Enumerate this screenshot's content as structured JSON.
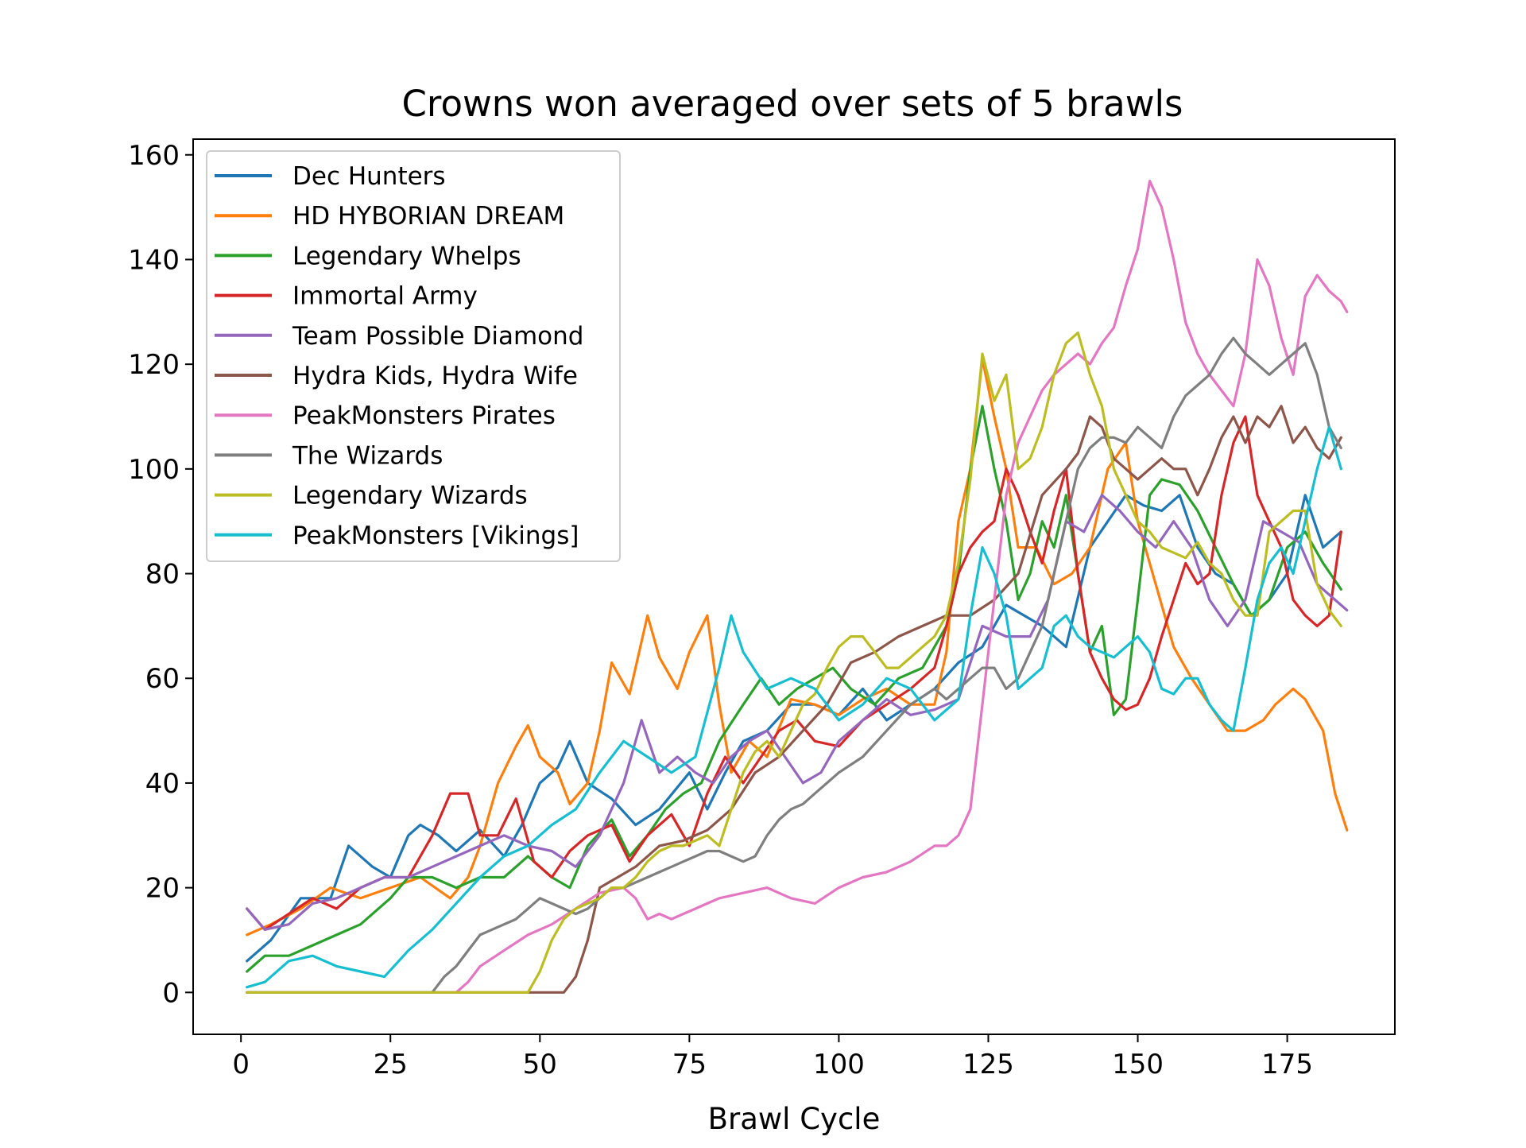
{
  "chart_data": {
    "type": "line",
    "title": "Crowns won averaged over sets of 5 brawls",
    "xlabel": "Brawl Cycle",
    "ylabel": "",
    "xlim": [
      -8,
      193
    ],
    "ylim": [
      -8,
      163
    ],
    "xticks": [
      0,
      25,
      50,
      75,
      100,
      125,
      150,
      175
    ],
    "yticks": [
      0,
      20,
      40,
      60,
      80,
      100,
      120,
      140,
      160
    ],
    "grid": false,
    "legend_position": "upper-left",
    "series": [
      {
        "name": "Dec Hunters",
        "color": "#1f77b4",
        "x": [
          1,
          5,
          10,
          15,
          18,
          22,
          25,
          28,
          30,
          33,
          36,
          40,
          44,
          47,
          50,
          53,
          55,
          58,
          62,
          66,
          70,
          75,
          78,
          81,
          84,
          88,
          92,
          96,
          100,
          104,
          108,
          112,
          116,
          120,
          124,
          128,
          131,
          134,
          138,
          142,
          145,
          148,
          151,
          154,
          157,
          160,
          163,
          166,
          169,
          172,
          175,
          178,
          181,
          184
        ],
        "y": [
          6,
          10,
          18,
          18,
          28,
          24,
          22,
          30,
          32,
          30,
          27,
          31,
          26,
          32,
          40,
          43,
          48,
          40,
          37,
          32,
          35,
          42,
          35,
          42,
          48,
          50,
          55,
          55,
          53,
          58,
          52,
          55,
          58,
          63,
          66,
          74,
          72,
          70,
          66,
          85,
          90,
          95,
          93,
          92,
          95,
          85,
          80,
          78,
          72,
          75,
          80,
          95,
          85,
          88
        ]
      },
      {
        "name": "HD HYBORIAN DREAM",
        "color": "#ff7f0e",
        "x": [
          1,
          5,
          10,
          15,
          20,
          25,
          30,
          35,
          38,
          40,
          43,
          46,
          48,
          50,
          53,
          55,
          58,
          60,
          62,
          65,
          68,
          70,
          73,
          75,
          78,
          80,
          82,
          85,
          88,
          92,
          96,
          100,
          104,
          108,
          112,
          116,
          118,
          120,
          122,
          124,
          126,
          128,
          130,
          133,
          136,
          139,
          142,
          145,
          148,
          150,
          153,
          156,
          159,
          162,
          165,
          168,
          171,
          173,
          176,
          178,
          181,
          183,
          185
        ],
        "y": [
          11,
          13,
          16,
          20,
          18,
          20,
          22,
          18,
          22,
          28,
          40,
          47,
          51,
          45,
          42,
          36,
          40,
          50,
          63,
          57,
          72,
          64,
          58,
          65,
          72,
          55,
          42,
          48,
          45,
          56,
          55,
          53,
          56,
          58,
          55,
          55,
          65,
          90,
          100,
          121,
          110,
          100,
          85,
          85,
          78,
          80,
          85,
          100,
          105,
          90,
          78,
          66,
          60,
          55,
          50,
          50,
          52,
          55,
          58,
          56,
          50,
          38,
          31
        ]
      },
      {
        "name": "Legendary Whelps",
        "color": "#2ca02c",
        "x": [
          1,
          4,
          8,
          12,
          16,
          20,
          25,
          28,
          32,
          36,
          40,
          44,
          48,
          52,
          55,
          58,
          62,
          65,
          68,
          71,
          74,
          77,
          80,
          84,
          87,
          90,
          93,
          96,
          99,
          102,
          106,
          110,
          114,
          118,
          120,
          122,
          124,
          126,
          128,
          130,
          132,
          134,
          136,
          138,
          140,
          142,
          144,
          146,
          148,
          150,
          152,
          154,
          157,
          160,
          163,
          166,
          169,
          172,
          175,
          178,
          181,
          184
        ],
        "y": [
          4,
          7,
          7,
          9,
          11,
          13,
          18,
          22,
          22,
          20,
          22,
          22,
          26,
          22,
          20,
          28,
          33,
          26,
          30,
          35,
          38,
          40,
          48,
          55,
          60,
          55,
          58,
          60,
          62,
          58,
          55,
          60,
          62,
          70,
          80,
          100,
          112,
          100,
          90,
          75,
          80,
          90,
          85,
          95,
          80,
          65,
          70,
          53,
          56,
          75,
          95,
          98,
          97,
          92,
          85,
          78,
          72,
          75,
          85,
          88,
          82,
          77
        ]
      },
      {
        "name": "Immortal Army",
        "color": "#d62728",
        "x": [
          1,
          4,
          8,
          12,
          16,
          20,
          24,
          28,
          32,
          35,
          38,
          40,
          43,
          46,
          49,
          52,
          55,
          58,
          62,
          65,
          68,
          72,
          75,
          78,
          81,
          84,
          87,
          90,
          93,
          96,
          100,
          104,
          108,
          112,
          116,
          118,
          120,
          122,
          124,
          126,
          128,
          130,
          132,
          134,
          136,
          138,
          140,
          142,
          144,
          146,
          148,
          150,
          152,
          154,
          156,
          158,
          160,
          162,
          164,
          166,
          168,
          170,
          172,
          174,
          176,
          178,
          180,
          182,
          184
        ],
        "y": [
          16,
          12,
          15,
          18,
          16,
          20,
          22,
          22,
          30,
          38,
          38,
          30,
          30,
          37,
          25,
          22,
          27,
          30,
          32,
          25,
          30,
          34,
          28,
          38,
          45,
          40,
          45,
          50,
          52,
          48,
          47,
          52,
          55,
          58,
          62,
          70,
          80,
          85,
          88,
          90,
          100,
          95,
          88,
          82,
          92,
          100,
          80,
          65,
          60,
          56,
          54,
          55,
          60,
          68,
          75,
          82,
          78,
          80,
          95,
          105,
          110,
          95,
          90,
          85,
          75,
          72,
          70,
          72,
          88
        ]
      },
      {
        "name": "Team Possible Diamond",
        "color": "#9467bd",
        "x": [
          1,
          4,
          8,
          12,
          16,
          20,
          24,
          28,
          32,
          36,
          40,
          44,
          48,
          52,
          56,
          60,
          64,
          67,
          70,
          73,
          76,
          79,
          82,
          85,
          88,
          91,
          94,
          97,
          100,
          104,
          108,
          112,
          116,
          120,
          124,
          128,
          132,
          135,
          138,
          141,
          144,
          147,
          150,
          153,
          156,
          159,
          162,
          165,
          168,
          171,
          174,
          177,
          180,
          183,
          185
        ],
        "y": [
          16,
          12,
          13,
          17,
          18,
          20,
          22,
          22,
          24,
          26,
          28,
          30,
          28,
          27,
          24,
          30,
          40,
          52,
          42,
          45,
          42,
          40,
          45,
          48,
          50,
          45,
          40,
          42,
          48,
          52,
          56,
          53,
          54,
          56,
          70,
          68,
          68,
          75,
          90,
          88,
          95,
          92,
          88,
          85,
          90,
          85,
          75,
          70,
          75,
          90,
          88,
          86,
          78,
          75,
          73
        ]
      },
      {
        "name": "Hydra Kids, Hydra Wife",
        "color": "#8c564b",
        "x": [
          1,
          10,
          20,
          30,
          40,
          50,
          54,
          56,
          58,
          60,
          63,
          66,
          70,
          74,
          78,
          82,
          86,
          90,
          94,
          98,
          102,
          106,
          110,
          114,
          118,
          122,
          126,
          130,
          134,
          138,
          140,
          142,
          144,
          146,
          148,
          150,
          152,
          154,
          156,
          158,
          160,
          162,
          164,
          166,
          168,
          170,
          172,
          174,
          176,
          178,
          180,
          182,
          184
        ],
        "y": [
          0,
          0,
          0,
          0,
          0,
          0,
          0,
          3,
          10,
          20,
          22,
          24,
          28,
          29,
          31,
          35,
          42,
          45,
          50,
          55,
          63,
          65,
          68,
          70,
          72,
          72,
          75,
          80,
          95,
          100,
          103,
          110,
          108,
          102,
          100,
          98,
          100,
          102,
          100,
          100,
          95,
          100,
          106,
          110,
          105,
          110,
          108,
          112,
          105,
          108,
          104,
          102,
          106
        ]
      },
      {
        "name": "PeakMonsters Pirates",
        "color": "#e377c2",
        "x": [
          1,
          20,
          36,
          38,
          40,
          44,
          48,
          52,
          56,
          60,
          64,
          66,
          68,
          70,
          72,
          74,
          76,
          78,
          80,
          84,
          88,
          92,
          96,
          100,
          104,
          108,
          112,
          116,
          118,
          120,
          122,
          124,
          126,
          128,
          130,
          132,
          134,
          136,
          138,
          140,
          142,
          144,
          146,
          148,
          150,
          152,
          154,
          156,
          158,
          160,
          162,
          164,
          166,
          168,
          170,
          172,
          174,
          176,
          178,
          180,
          182,
          184,
          185
        ],
        "y": [
          0,
          0,
          0,
          2,
          5,
          8,
          11,
          13,
          16,
          19,
          20,
          18,
          14,
          15,
          14,
          15,
          16,
          17,
          18,
          19,
          20,
          18,
          17,
          20,
          22,
          23,
          25,
          28,
          28,
          30,
          35,
          55,
          75,
          95,
          105,
          110,
          115,
          118,
          120,
          122,
          120,
          124,
          127,
          135,
          142,
          155,
          150,
          140,
          128,
          122,
          118,
          115,
          112,
          122,
          140,
          135,
          125,
          118,
          133,
          137,
          134,
          132,
          130
        ]
      },
      {
        "name": "The Wizards",
        "color": "#7f7f7f",
        "x": [
          1,
          20,
          32,
          34,
          36,
          38,
          40,
          42,
          44,
          46,
          48,
          50,
          52,
          54,
          56,
          58,
          60,
          62,
          64,
          66,
          68,
          70,
          72,
          74,
          76,
          78,
          80,
          82,
          84,
          86,
          88,
          90,
          92,
          94,
          96,
          98,
          100,
          104,
          108,
          112,
          116,
          118,
          120,
          122,
          124,
          126,
          128,
          130,
          132,
          134,
          136,
          138,
          140,
          142,
          144,
          146,
          148,
          150,
          152,
          154,
          156,
          158,
          160,
          162,
          164,
          166,
          168,
          170,
          172,
          174,
          176,
          178,
          180,
          182,
          184
        ],
        "y": [
          0,
          0,
          0,
          3,
          5,
          8,
          11,
          12,
          13,
          14,
          16,
          18,
          17,
          16,
          15,
          16,
          18,
          20,
          20,
          21,
          22,
          23,
          24,
          25,
          26,
          27,
          27,
          26,
          25,
          26,
          30,
          33,
          35,
          36,
          38,
          40,
          42,
          45,
          50,
          55,
          58,
          56,
          58,
          60,
          62,
          62,
          58,
          60,
          65,
          70,
          80,
          90,
          100,
          104,
          106,
          106,
          105,
          108,
          106,
          104,
          110,
          114,
          116,
          118,
          122,
          125,
          122,
          120,
          118,
          120,
          122,
          124,
          118,
          108,
          104
        ]
      },
      {
        "name": "Legendary Wizards",
        "color": "#bcbd22",
        "x": [
          1,
          20,
          40,
          48,
          50,
          52,
          54,
          56,
          58,
          60,
          62,
          64,
          66,
          68,
          70,
          72,
          74,
          76,
          78,
          80,
          82,
          84,
          86,
          88,
          90,
          92,
          94,
          96,
          98,
          100,
          102,
          104,
          106,
          108,
          110,
          112,
          114,
          116,
          118,
          120,
          122,
          124,
          126,
          128,
          130,
          132,
          134,
          136,
          138,
          140,
          142,
          144,
          146,
          148,
          150,
          152,
          154,
          156,
          158,
          160,
          162,
          164,
          166,
          168,
          170,
          172,
          174,
          176,
          178,
          180,
          182,
          184
        ],
        "y": [
          0,
          0,
          0,
          0,
          4,
          10,
          14,
          16,
          17,
          18,
          20,
          20,
          22,
          25,
          27,
          28,
          28,
          29,
          30,
          28,
          35,
          42,
          46,
          48,
          45,
          50,
          55,
          57,
          62,
          66,
          68,
          68,
          65,
          62,
          62,
          64,
          66,
          68,
          72,
          82,
          98,
          122,
          113,
          118,
          100,
          102,
          108,
          118,
          124,
          126,
          118,
          112,
          100,
          95,
          90,
          88,
          85,
          84,
          83,
          86,
          82,
          80,
          75,
          72,
          72,
          88,
          90,
          92,
          92,
          78,
          73,
          70
        ]
      },
      {
        "name": "PeakMonsters [Vikings]",
        "color": "#17becf",
        "x": [
          1,
          4,
          8,
          12,
          16,
          20,
          24,
          28,
          32,
          36,
          40,
          44,
          48,
          52,
          56,
          60,
          64,
          68,
          72,
          76,
          80,
          82,
          84,
          88,
          92,
          96,
          100,
          104,
          108,
          112,
          116,
          120,
          122,
          124,
          126,
          128,
          130,
          132,
          134,
          136,
          138,
          140,
          142,
          144,
          146,
          148,
          150,
          152,
          154,
          156,
          158,
          160,
          162,
          164,
          166,
          168,
          170,
          172,
          174,
          176,
          178,
          180,
          182,
          184
        ],
        "y": [
          1,
          2,
          6,
          7,
          5,
          4,
          3,
          8,
          12,
          17,
          22,
          26,
          28,
          32,
          35,
          42,
          48,
          45,
          42,
          45,
          62,
          72,
          65,
          58,
          60,
          58,
          52,
          55,
          60,
          58,
          52,
          56,
          72,
          85,
          80,
          72,
          58,
          60,
          62,
          70,
          72,
          68,
          66,
          65,
          64,
          66,
          68,
          65,
          58,
          57,
          60,
          60,
          55,
          52,
          50,
          62,
          75,
          82,
          85,
          80,
          90,
          100,
          108,
          100
        ]
      }
    ]
  }
}
